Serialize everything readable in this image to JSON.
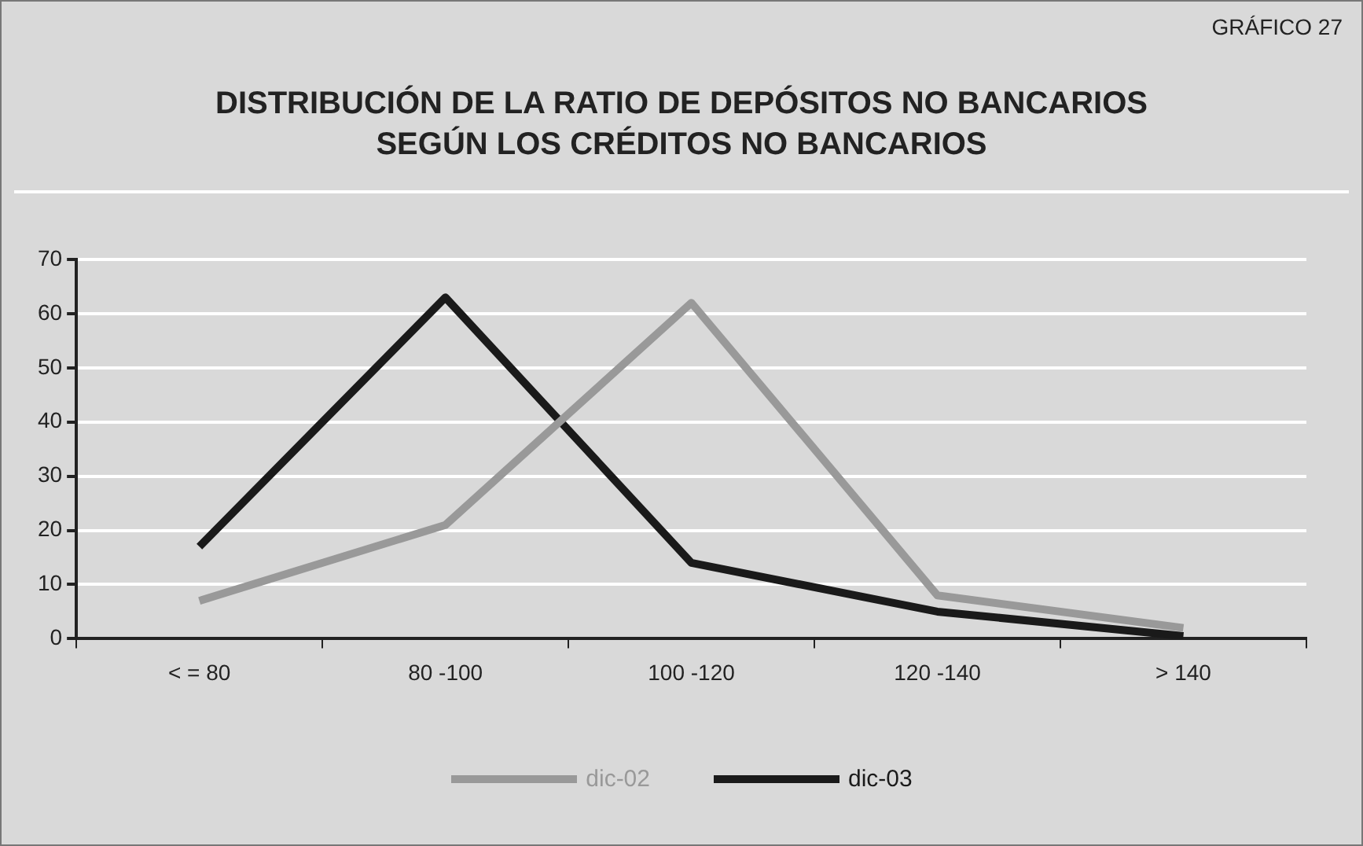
{
  "chart_data": {
    "type": "line",
    "title": "DISTRIBUCIÓN DE LA RATIO DE DEPÓSITOS NO BANCARIOS\nSEGÚN LOS CRÉDITOS NO BANCARIOS",
    "annotations": [
      "GRÁFICO 27"
    ],
    "categories": [
      "< = 80",
      "80 -100",
      "100 -120",
      "120 -140",
      "> 140"
    ],
    "series": [
      {
        "name": "dic-02",
        "color": "#999999",
        "values": [
          7,
          21,
          62,
          8,
          2
        ]
      },
      {
        "name": "dic-03",
        "color": "#1a1a1a",
        "values": [
          17,
          63,
          14,
          5,
          0.5
        ]
      }
    ],
    "ylim": [
      0,
      70
    ],
    "yticks": [
      0,
      10,
      20,
      30,
      40,
      50,
      60,
      70
    ],
    "grid": "y",
    "legend": "bottom",
    "marker": "none",
    "line_style": "solid"
  }
}
